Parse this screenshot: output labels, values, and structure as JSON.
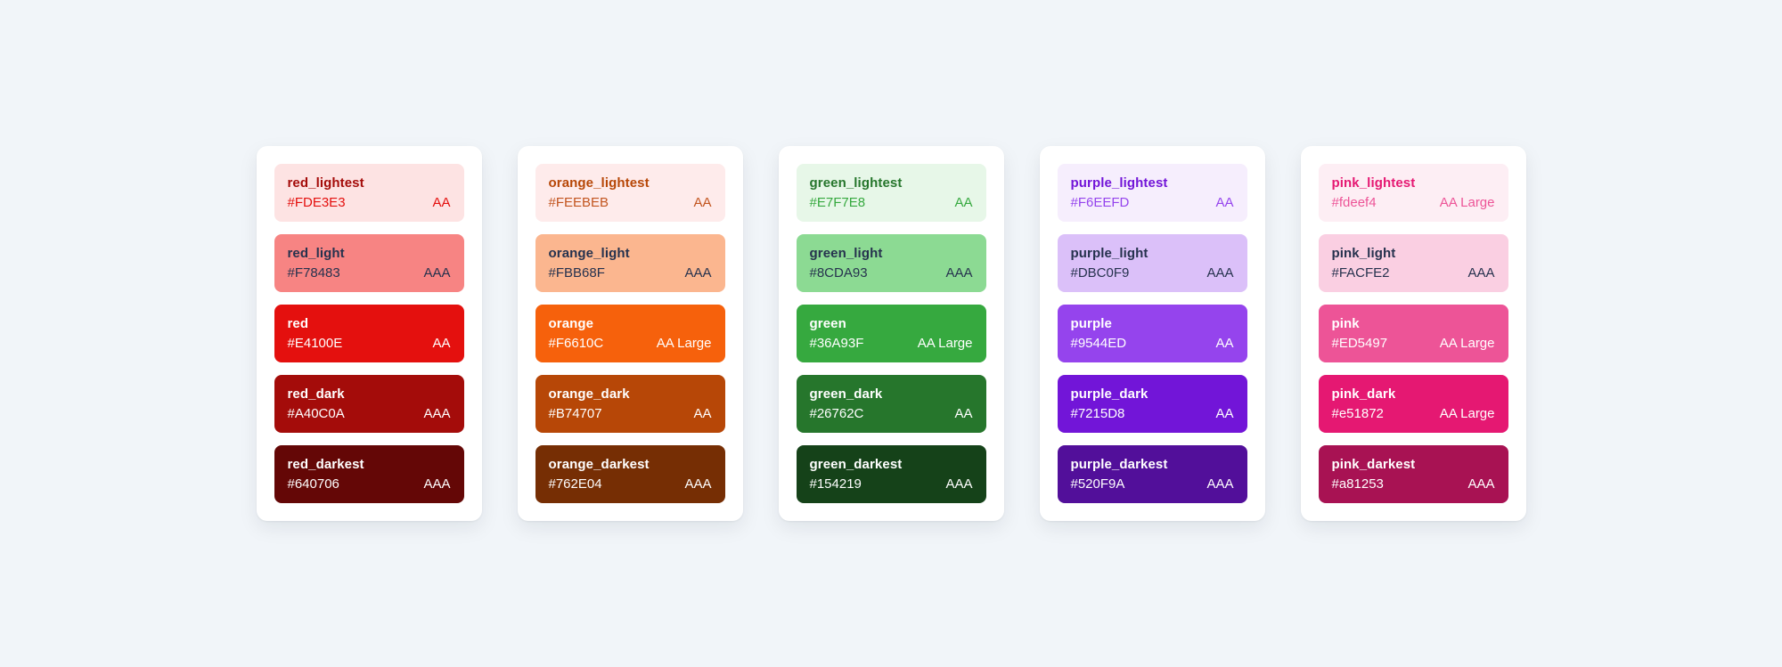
{
  "page": {
    "background": "#F1F5F9",
    "card_background": "#FFFFFF",
    "dark_text_color": "#26324E",
    "light_text_color": "#FFFFFF"
  },
  "cards": [
    {
      "name": "red",
      "swatches": [
        {
          "label": "red_lightest",
          "hex": "#FDE3E3",
          "badge": "AA",
          "title_color": "#A40C0A",
          "value_color": "#E4100E"
        },
        {
          "label": "red_light",
          "hex": "#F78483",
          "badge": "AAA",
          "title_color": "#26324E",
          "value_color": "#26324E"
        },
        {
          "label": "red",
          "hex": "#E4100E",
          "badge": "AA",
          "title_color": "#FFFFFF",
          "value_color": "#FFFFFF"
        },
        {
          "label": "red_dark",
          "hex": "#A40C0A",
          "badge": "AAA",
          "title_color": "#FFFFFF",
          "value_color": "#FFFFFF"
        },
        {
          "label": "red_darkest",
          "hex": "#640706",
          "badge": "AAA",
          "title_color": "#FFFFFF",
          "value_color": "#FFFFFF"
        }
      ]
    },
    {
      "name": "orange",
      "swatches": [
        {
          "label": "orange_lightest",
          "hex": "#FEEBEB",
          "badge": "AA",
          "title_color": "#B74707",
          "value_color": "#C2551F"
        },
        {
          "label": "orange_light",
          "hex": "#FBB68F",
          "badge": "AAA",
          "title_color": "#26324E",
          "value_color": "#26324E"
        },
        {
          "label": "orange",
          "hex": "#F6610C",
          "badge": "AA Large",
          "title_color": "#FFFFFF",
          "value_color": "#FFFFFF"
        },
        {
          "label": "orange_dark",
          "hex": "#B74707",
          "badge": "AA",
          "title_color": "#FFFFFF",
          "value_color": "#FFFFFF"
        },
        {
          "label": "orange_darkest",
          "hex": "#762E04",
          "badge": "AAA",
          "title_color": "#FFFFFF",
          "value_color": "#FFFFFF"
        }
      ]
    },
    {
      "name": "green",
      "swatches": [
        {
          "label": "green_lightest",
          "hex": "#E7F7E8",
          "badge": "AA",
          "title_color": "#26762C",
          "value_color": "#36A93F"
        },
        {
          "label": "green_light",
          "hex": "#8CDA93",
          "badge": "AAA",
          "title_color": "#26324E",
          "value_color": "#26324E"
        },
        {
          "label": "green",
          "hex": "#36A93F",
          "badge": "AA Large",
          "title_color": "#FFFFFF",
          "value_color": "#FFFFFF"
        },
        {
          "label": "green_dark",
          "hex": "#26762C",
          "badge": "AA",
          "title_color": "#FFFFFF",
          "value_color": "#FFFFFF"
        },
        {
          "label": "green_darkest",
          "hex": "#154219",
          "badge": "AAA",
          "title_color": "#FFFFFF",
          "value_color": "#FFFFFF"
        }
      ]
    },
    {
      "name": "purple",
      "swatches": [
        {
          "label": "purple_lightest",
          "hex": "#F6EEFD",
          "badge": "AA",
          "title_color": "#7215D8",
          "value_color": "#9544ED"
        },
        {
          "label": "purple_light",
          "hex": "#DBC0F9",
          "badge": "AAA",
          "title_color": "#26324E",
          "value_color": "#26324E"
        },
        {
          "label": "purple",
          "hex": "#9544ED",
          "badge": "AA",
          "title_color": "#FFFFFF",
          "value_color": "#FFFFFF"
        },
        {
          "label": "purple_dark",
          "hex": "#7215D8",
          "badge": "AA",
          "title_color": "#FFFFFF",
          "value_color": "#FFFFFF"
        },
        {
          "label": "purple_darkest",
          "hex": "#520F9A",
          "badge": "AAA",
          "title_color": "#FFFFFF",
          "value_color": "#FFFFFF"
        }
      ]
    },
    {
      "name": "pink",
      "swatches": [
        {
          "label": "pink_lightest",
          "hex": "#fdeef4",
          "badge": "AA Large",
          "title_color": "#e51872",
          "value_color": "#ED5497"
        },
        {
          "label": "pink_light",
          "hex": "#FACFE2",
          "badge": "AAA",
          "title_color": "#26324E",
          "value_color": "#26324E"
        },
        {
          "label": "pink",
          "hex": "#ED5497",
          "badge": "AA Large",
          "title_color": "#FFFFFF",
          "value_color": "#FFFFFF"
        },
        {
          "label": "pink_dark",
          "hex": "#e51872",
          "badge": "AA Large",
          "title_color": "#FFFFFF",
          "value_color": "#FFFFFF"
        },
        {
          "label": "pink_darkest",
          "hex": "#a81253",
          "badge": "AAA",
          "title_color": "#FFFFFF",
          "value_color": "#FFFFFF"
        }
      ]
    }
  ]
}
